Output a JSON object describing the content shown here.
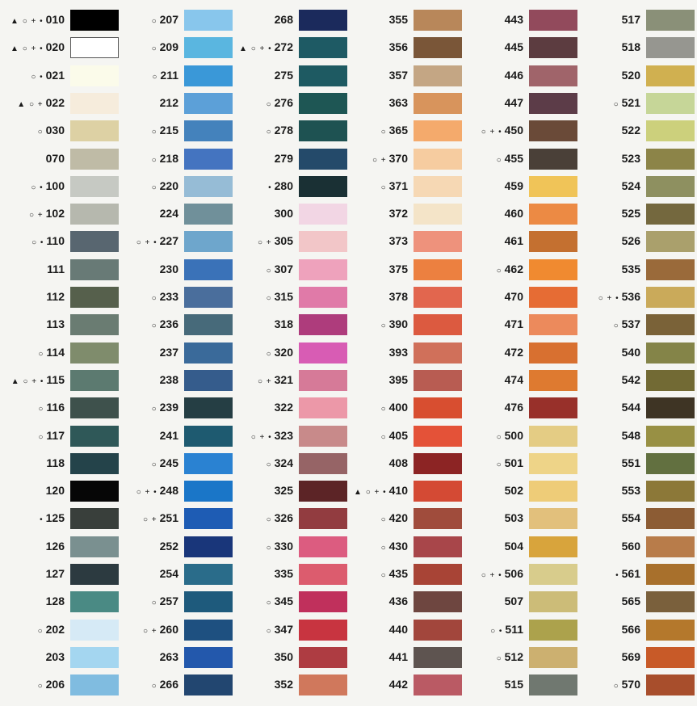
{
  "columns": [
    {
      "items": [
        {
          "code": "010",
          "marks": "▲ ○ + •",
          "color": "#000000"
        },
        {
          "code": "020",
          "marks": "▲ ○ + •",
          "color": "#ffffff"
        },
        {
          "code": "021",
          "marks": "○ •",
          "color": "#fbfbea"
        },
        {
          "code": "022",
          "marks": "▲ ○ +",
          "color": "#f6ecdc"
        },
        {
          "code": "030",
          "marks": "○",
          "color": "#ddd1a4"
        },
        {
          "code": "070",
          "marks": "",
          "color": "#bfbba6"
        },
        {
          "code": "100",
          "marks": "○ •",
          "color": "#c6c9c3"
        },
        {
          "code": "102",
          "marks": "○ +",
          "color": "#b6b8ae"
        },
        {
          "code": "110",
          "marks": "○ •",
          "color": "#586670"
        },
        {
          "code": "111",
          "marks": "",
          "color": "#687a76"
        },
        {
          "code": "112",
          "marks": "",
          "color": "#56604c"
        },
        {
          "code": "113",
          "marks": "",
          "color": "#6a7c72"
        },
        {
          "code": "114",
          "marks": "○",
          "color": "#7f8c6c"
        },
        {
          "code": "115",
          "marks": "▲ ○ + •",
          "color": "#5c7a70"
        },
        {
          "code": "116",
          "marks": "○",
          "color": "#3e514c"
        },
        {
          "code": "117",
          "marks": "○",
          "color": "#2f5858"
        },
        {
          "code": "118",
          "marks": "",
          "color": "#24434a"
        },
        {
          "code": "120",
          "marks": "",
          "color": "#060606"
        },
        {
          "code": "125",
          "marks": "•",
          "color": "#393f3b"
        },
        {
          "code": "126",
          "marks": "",
          "color": "#7a9090"
        },
        {
          "code": "127",
          "marks": "",
          "color": "#2c3a40"
        },
        {
          "code": "128",
          "marks": "",
          "color": "#4a8a84"
        },
        {
          "code": "202",
          "marks": "○",
          "color": "#d6eaf6"
        },
        {
          "code": "203",
          "marks": "",
          "color": "#a4d6f0"
        },
        {
          "code": "206",
          "marks": "○",
          "color": "#80bce0"
        }
      ]
    },
    {
      "items": [
        {
          "code": "207",
          "marks": "○",
          "color": "#88c6ec"
        },
        {
          "code": "209",
          "marks": "○",
          "color": "#5ab6e0"
        },
        {
          "code": "211",
          "marks": "○",
          "color": "#3a98d8"
        },
        {
          "code": "212",
          "marks": "",
          "color": "#5ca0d8"
        },
        {
          "code": "215",
          "marks": "○",
          "color": "#4482bc"
        },
        {
          "code": "218",
          "marks": "○",
          "color": "#4474c0"
        },
        {
          "code": "220",
          "marks": "○",
          "color": "#96bcd6"
        },
        {
          "code": "224",
          "marks": "",
          "color": "#70909a"
        },
        {
          "code": "227",
          "marks": "○ + •",
          "color": "#6ea6cc"
        },
        {
          "code": "230",
          "marks": "",
          "color": "#3a72b8"
        },
        {
          "code": "233",
          "marks": "○",
          "color": "#4a6e9c"
        },
        {
          "code": "236",
          "marks": "○",
          "color": "#476a7a"
        },
        {
          "code": "237",
          "marks": "",
          "color": "#3a6a9a"
        },
        {
          "code": "238",
          "marks": "",
          "color": "#355c8c"
        },
        {
          "code": "239",
          "marks": "○",
          "color": "#253e44"
        },
        {
          "code": "241",
          "marks": "",
          "color": "#1e5a70"
        },
        {
          "code": "245",
          "marks": "○",
          "color": "#2a82d2"
        },
        {
          "code": "248",
          "marks": "○ + •",
          "color": "#1a76c8"
        },
        {
          "code": "251",
          "marks": "○ +",
          "color": "#1e5cb4"
        },
        {
          "code": "252",
          "marks": "",
          "color": "#19367a"
        },
        {
          "code": "254",
          "marks": "",
          "color": "#2a6c8a"
        },
        {
          "code": "257",
          "marks": "○",
          "color": "#1e5a7c"
        },
        {
          "code": "260",
          "marks": "○ +",
          "color": "#1e5080"
        },
        {
          "code": "263",
          "marks": "",
          "color": "#2358ac"
        },
        {
          "code": "266",
          "marks": "○",
          "color": "#224670"
        }
      ]
    },
    {
      "items": [
        {
          "code": "268",
          "marks": "",
          "color": "#1b2a5c"
        },
        {
          "code": "272",
          "marks": "▲ ○ + •",
          "color": "#1e5a64"
        },
        {
          "code": "275",
          "marks": "",
          "color": "#1e5a62"
        },
        {
          "code": "276",
          "marks": "○",
          "color": "#1e5654"
        },
        {
          "code": "278",
          "marks": "○",
          "color": "#1e5252"
        },
        {
          "code": "279",
          "marks": "",
          "color": "#244a6a"
        },
        {
          "code": "280",
          "marks": "•",
          "color": "#1a3034"
        },
        {
          "code": "300",
          "marks": "",
          "color": "#f2d6e4"
        },
        {
          "code": "305",
          "marks": "○ +",
          "color": "#f2c6c8"
        },
        {
          "code": "307",
          "marks": "○",
          "color": "#eea2bc"
        },
        {
          "code": "315",
          "marks": "○",
          "color": "#e07aa8"
        },
        {
          "code": "318",
          "marks": "",
          "color": "#ae3c7c"
        },
        {
          "code": "320",
          "marks": "○",
          "color": "#d85cb4"
        },
        {
          "code": "321",
          "marks": "○ +",
          "color": "#d67a98"
        },
        {
          "code": "322",
          "marks": "",
          "color": "#ec98a8"
        },
        {
          "code": "323",
          "marks": "○ + •",
          "color": "#c88a8a"
        },
        {
          "code": "324",
          "marks": "○",
          "color": "#966466"
        },
        {
          "code": "325",
          "marks": "",
          "color": "#5c2426"
        },
        {
          "code": "326",
          "marks": "○",
          "color": "#923c40"
        },
        {
          "code": "330",
          "marks": "○",
          "color": "#dc5c80"
        },
        {
          "code": "335",
          "marks": "",
          "color": "#dc5c6e"
        },
        {
          "code": "345",
          "marks": "○",
          "color": "#c0305c"
        },
        {
          "code": "347",
          "marks": "○",
          "color": "#c83440"
        },
        {
          "code": "350",
          "marks": "",
          "color": "#ae3c42"
        },
        {
          "code": "352",
          "marks": "",
          "color": "#d0785c"
        }
      ]
    },
    {
      "items": [
        {
          "code": "355",
          "marks": "",
          "color": "#b8875a"
        },
        {
          "code": "356",
          "marks": "",
          "color": "#7a5638"
        },
        {
          "code": "357",
          "marks": "",
          "color": "#c4a684"
        },
        {
          "code": "363",
          "marks": "",
          "color": "#d8945c"
        },
        {
          "code": "365",
          "marks": "○",
          "color": "#f4aa6c"
        },
        {
          "code": "370",
          "marks": "○ +",
          "color": "#f6cca0"
        },
        {
          "code": "371",
          "marks": "○",
          "color": "#f6d8b4"
        },
        {
          "code": "372",
          "marks": "",
          "color": "#f4e4c8"
        },
        {
          "code": "373",
          "marks": "",
          "color": "#ee927c"
        },
        {
          "code": "375",
          "marks": "",
          "color": "#ec8040"
        },
        {
          "code": "378",
          "marks": "",
          "color": "#e2664e"
        },
        {
          "code": "390",
          "marks": "○",
          "color": "#dc5a40"
        },
        {
          "code": "393",
          "marks": "",
          "color": "#d0705a"
        },
        {
          "code": "395",
          "marks": "",
          "color": "#b85c52"
        },
        {
          "code": "400",
          "marks": "○",
          "color": "#d84e30"
        },
        {
          "code": "405",
          "marks": "○",
          "color": "#e45238"
        },
        {
          "code": "408",
          "marks": "",
          "color": "#8c2424"
        },
        {
          "code": "410",
          "marks": "▲ ○ + •",
          "color": "#d44a34"
        },
        {
          "code": "420",
          "marks": "○",
          "color": "#a04c3c"
        },
        {
          "code": "430",
          "marks": "○",
          "color": "#a8464a"
        },
        {
          "code": "435",
          "marks": "○",
          "color": "#a84436"
        },
        {
          "code": "436",
          "marks": "",
          "color": "#6e4640"
        },
        {
          "code": "440",
          "marks": "",
          "color": "#a2463c"
        },
        {
          "code": "441",
          "marks": "",
          "color": "#5e5450"
        },
        {
          "code": "442",
          "marks": "",
          "color": "#ba5a64"
        }
      ]
    },
    {
      "items": [
        {
          "code": "443",
          "marks": "",
          "color": "#924a5c"
        },
        {
          "code": "445",
          "marks": "",
          "color": "#5c3c40"
        },
        {
          "code": "446",
          "marks": "",
          "color": "#a0646a"
        },
        {
          "code": "447",
          "marks": "",
          "color": "#5c3c48"
        },
        {
          "code": "450",
          "marks": "○ + •",
          "color": "#6a4a38"
        },
        {
          "code": "455",
          "marks": "○",
          "color": "#4a4038"
        },
        {
          "code": "459",
          "marks": "",
          "color": "#f0c458"
        },
        {
          "code": "460",
          "marks": "",
          "color": "#ec8a44"
        },
        {
          "code": "461",
          "marks": "",
          "color": "#c47030"
        },
        {
          "code": "462",
          "marks": "○",
          "color": "#f08a30"
        },
        {
          "code": "470",
          "marks": "",
          "color": "#e66c34"
        },
        {
          "code": "471",
          "marks": "",
          "color": "#ec8a5c"
        },
        {
          "code": "472",
          "marks": "",
          "color": "#d87030"
        },
        {
          "code": "474",
          "marks": "",
          "color": "#de7a30"
        },
        {
          "code": "476",
          "marks": "",
          "color": "#98302a"
        },
        {
          "code": "500",
          "marks": "○",
          "color": "#e4cc84"
        },
        {
          "code": "501",
          "marks": "○",
          "color": "#eed488"
        },
        {
          "code": "502",
          "marks": "",
          "color": "#eecc78"
        },
        {
          "code": "503",
          "marks": "",
          "color": "#e2c07c"
        },
        {
          "code": "504",
          "marks": "",
          "color": "#d8a43c"
        },
        {
          "code": "506",
          "marks": "○ + •",
          "color": "#d8cc8c"
        },
        {
          "code": "507",
          "marks": "",
          "color": "#ccbc78"
        },
        {
          "code": "511",
          "marks": "○ •",
          "color": "#aca24c"
        },
        {
          "code": "512",
          "marks": "○",
          "color": "#ccb070"
        },
        {
          "code": "515",
          "marks": "",
          "color": "#707870"
        }
      ]
    },
    {
      "items": [
        {
          "code": "517",
          "marks": "",
          "color": "#8a9078"
        },
        {
          "code": "518",
          "marks": "",
          "color": "#969690"
        },
        {
          "code": "520",
          "marks": "",
          "color": "#d0b050"
        },
        {
          "code": "521",
          "marks": "○",
          "color": "#c6d698"
        },
        {
          "code": "522",
          "marks": "",
          "color": "#ccd07c"
        },
        {
          "code": "523",
          "marks": "",
          "color": "#8c8448"
        },
        {
          "code": "524",
          "marks": "",
          "color": "#8e9060"
        },
        {
          "code": "525",
          "marks": "",
          "color": "#74683e"
        },
        {
          "code": "526",
          "marks": "",
          "color": "#aaa06c"
        },
        {
          "code": "535",
          "marks": "",
          "color": "#9a6a3a"
        },
        {
          "code": "536",
          "marks": "○ + •",
          "color": "#caaa5a"
        },
        {
          "code": "537",
          "marks": "○",
          "color": "#7a6238"
        },
        {
          "code": "540",
          "marks": "",
          "color": "#848448"
        },
        {
          "code": "542",
          "marks": "",
          "color": "#726a34"
        },
        {
          "code": "544",
          "marks": "",
          "color": "#3e3424"
        },
        {
          "code": "548",
          "marks": "",
          "color": "#989044"
        },
        {
          "code": "551",
          "marks": "",
          "color": "#627040"
        },
        {
          "code": "553",
          "marks": "",
          "color": "#8c7838"
        },
        {
          "code": "554",
          "marks": "",
          "color": "#8c5c34"
        },
        {
          "code": "560",
          "marks": "",
          "color": "#b87c4a"
        },
        {
          "code": "561",
          "marks": "•",
          "color": "#a8702c"
        },
        {
          "code": "565",
          "marks": "",
          "color": "#7a603c"
        },
        {
          "code": "566",
          "marks": "",
          "color": "#b4782c"
        },
        {
          "code": "569",
          "marks": "",
          "color": "#c85a28"
        },
        {
          "code": "570",
          "marks": "○",
          "color": "#a84e2c"
        }
      ]
    }
  ]
}
